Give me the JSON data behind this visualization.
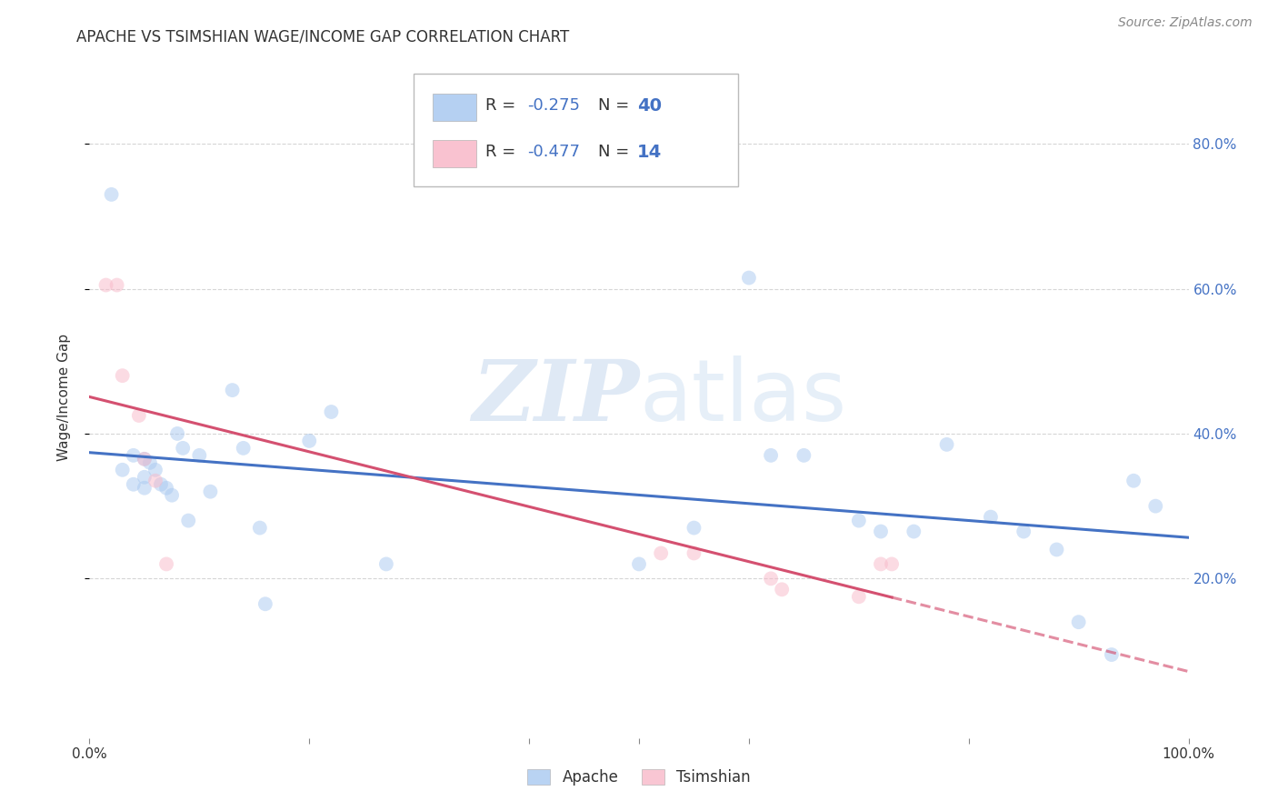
{
  "title": "APACHE VS TSIMSHIAN WAGE/INCOME GAP CORRELATION CHART",
  "source": "Source: ZipAtlas.com",
  "ylabel": "Wage/Income Gap",
  "ytick_labels": [
    "20.0%",
    "40.0%",
    "60.0%",
    "80.0%"
  ],
  "ytick_values": [
    0.2,
    0.4,
    0.6,
    0.8
  ],
  "xlim": [
    0.0,
    1.0
  ],
  "ylim": [
    -0.02,
    0.92
  ],
  "legend_apache": "Apache",
  "legend_tsimshian": "Tsimshian",
  "R_apache": -0.275,
  "N_apache": 40,
  "R_tsimshian": -0.477,
  "N_tsimshian": 14,
  "apache_color": "#A8C8F0",
  "tsimshian_color": "#F8B8C8",
  "apache_line_color": "#4472C4",
  "tsimshian_line_color": "#D45070",
  "apache_points_x": [
    0.02,
    0.03,
    0.04,
    0.04,
    0.05,
    0.05,
    0.05,
    0.055,
    0.06,
    0.065,
    0.07,
    0.075,
    0.08,
    0.085,
    0.09,
    0.1,
    0.11,
    0.13,
    0.14,
    0.155,
    0.16,
    0.2,
    0.22,
    0.27,
    0.5,
    0.55,
    0.6,
    0.62,
    0.65,
    0.7,
    0.72,
    0.75,
    0.78,
    0.82,
    0.85,
    0.88,
    0.9,
    0.93,
    0.95,
    0.97
  ],
  "apache_points_y": [
    0.73,
    0.35,
    0.37,
    0.33,
    0.365,
    0.34,
    0.325,
    0.36,
    0.35,
    0.33,
    0.325,
    0.315,
    0.4,
    0.38,
    0.28,
    0.37,
    0.32,
    0.46,
    0.38,
    0.27,
    0.165,
    0.39,
    0.43,
    0.22,
    0.22,
    0.27,
    0.615,
    0.37,
    0.37,
    0.28,
    0.265,
    0.265,
    0.385,
    0.285,
    0.265,
    0.24,
    0.14,
    0.095,
    0.335,
    0.3
  ],
  "tsimshian_points_x": [
    0.015,
    0.025,
    0.03,
    0.045,
    0.05,
    0.06,
    0.07,
    0.52,
    0.55,
    0.62,
    0.63,
    0.7,
    0.72,
    0.73
  ],
  "tsimshian_points_y": [
    0.605,
    0.605,
    0.48,
    0.425,
    0.365,
    0.335,
    0.22,
    0.235,
    0.235,
    0.2,
    0.185,
    0.175,
    0.22,
    0.22
  ],
  "background_color": "#FFFFFF",
  "grid_color": "#CCCCCC",
  "title_fontsize": 12,
  "axis_label_fontsize": 11,
  "tick_fontsize": 11,
  "source_fontsize": 10,
  "marker_size": 130,
  "marker_alpha": 0.5,
  "line_width": 2.2
}
